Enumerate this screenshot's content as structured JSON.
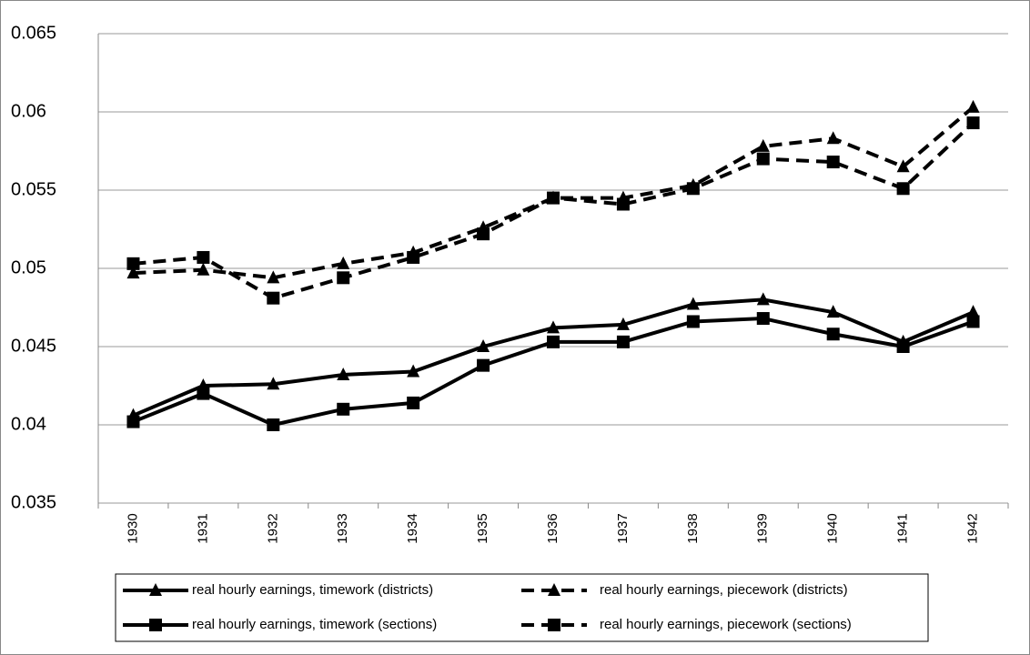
{
  "chart_data": {
    "type": "line",
    "categories": [
      "1930",
      "1931",
      "1932",
      "1933",
      "1934",
      "1935",
      "1936",
      "1937",
      "1938",
      "1939",
      "1940",
      "1941",
      "1942"
    ],
    "series": [
      {
        "name": "real hourly earnings, timework (districts)",
        "color": "#000000",
        "dashed": false,
        "marker": "triangle",
        "values": [
          0.0406,
          0.0425,
          0.0426,
          0.0432,
          0.0434,
          0.045,
          0.0462,
          0.0464,
          0.0477,
          0.048,
          0.0472,
          0.0453,
          0.0472
        ]
      },
      {
        "name": "real hourly earnings, piecework (districts)",
        "color": "#000000",
        "dashed": true,
        "marker": "triangle",
        "values": [
          0.0497,
          0.0499,
          0.0494,
          0.0503,
          0.051,
          0.0526,
          0.0545,
          0.0545,
          0.0553,
          0.0578,
          0.0583,
          0.0565,
          0.0603
        ]
      },
      {
        "name": "real hourly earnings, timework (sections)",
        "color": "#000000",
        "dashed": false,
        "marker": "square",
        "values": [
          0.0402,
          0.042,
          0.04,
          0.041,
          0.0414,
          0.0438,
          0.0453,
          0.0453,
          0.0466,
          0.0468,
          0.0458,
          0.045,
          0.0466
        ]
      },
      {
        "name": "real hourly earnings, piecework (sections)",
        "color": "#000000",
        "dashed": true,
        "marker": "square",
        "values": [
          0.0503,
          0.0507,
          0.0481,
          0.0494,
          0.0507,
          0.0522,
          0.0545,
          0.0541,
          0.0551,
          0.057,
          0.0568,
          0.0551,
          0.0593
        ]
      }
    ],
    "ylim": [
      0.035,
      0.065
    ],
    "yticks": [
      0.035,
      0.04,
      0.045,
      0.05,
      0.055,
      0.06,
      0.065
    ],
    "grid": true
  }
}
